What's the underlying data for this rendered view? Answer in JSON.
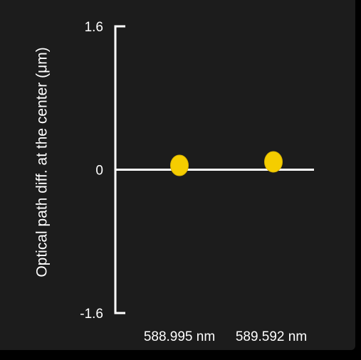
{
  "chart_data": {
    "type": "scatter",
    "title": "",
    "xlabel": "",
    "ylabel": "Optical path diff. at the center (μm)",
    "categories": [
      "588.995 nm",
      "589.592 nm"
    ],
    "values": [
      0.0,
      0.04
    ],
    "ylim": [
      -1.6,
      1.6
    ],
    "yticks": [
      {
        "value": 1.6,
        "label": "1.6"
      },
      {
        "value": 0,
        "label": "0"
      },
      {
        "value": -1.6,
        "label": "-1.6"
      }
    ],
    "grid": false,
    "legend": "none",
    "colors": {
      "background": "#1c1c1c",
      "axis": "#ffffff",
      "marker": "#f5cd00",
      "marker_edge": "#d9b300",
      "text": "#ffffff"
    }
  }
}
